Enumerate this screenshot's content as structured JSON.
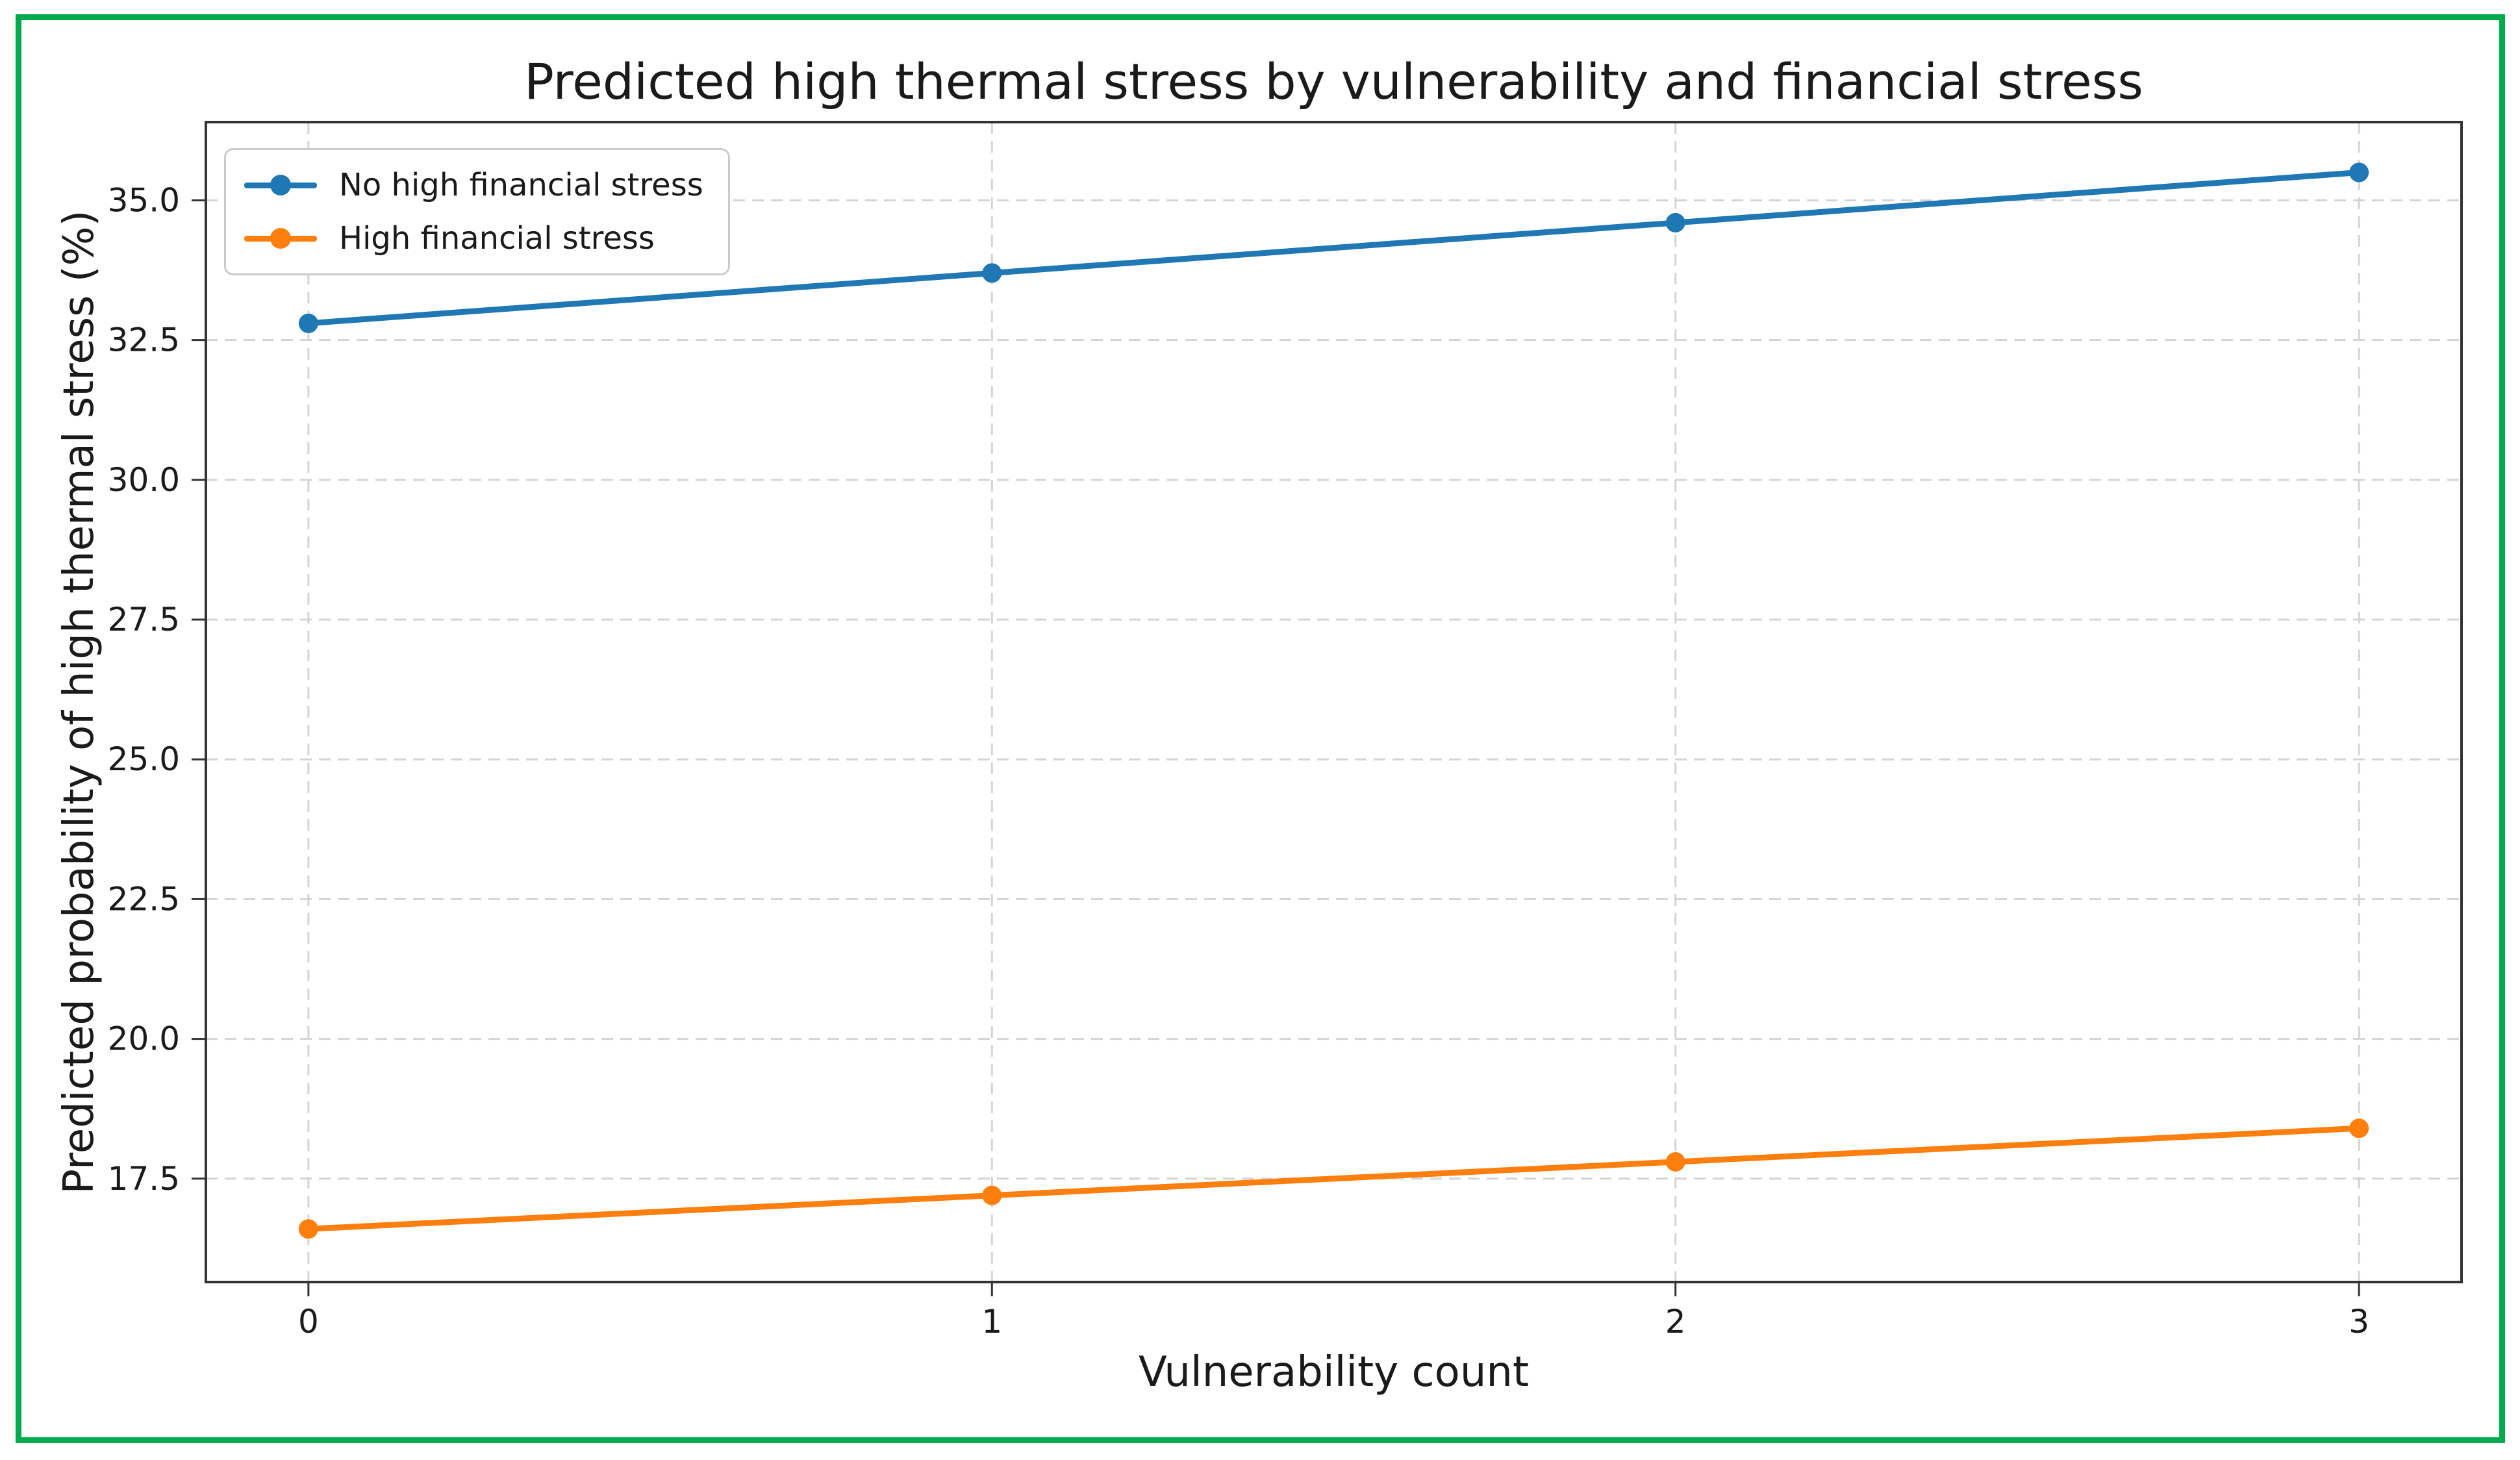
{
  "figure": {
    "border_color": "#00AB4E",
    "background": "#ffffff"
  },
  "chart_data": {
    "type": "line",
    "title": "Predicted high thermal stress by vulnerability and financial stress",
    "xlabel": "Vulnerability count",
    "ylabel": "Predicted probability of high thermal stress (%)",
    "x": [
      0,
      1,
      2,
      3
    ],
    "series": [
      {
        "name": "No high financial stress",
        "color": "#1f77b4",
        "values": [
          32.8,
          33.7,
          34.6,
          35.5
        ]
      },
      {
        "name": "High financial stress",
        "color": "#ff7f0e",
        "values": [
          16.6,
          17.2,
          17.8,
          18.4
        ]
      }
    ],
    "xlim": [
      -0.15,
      3.15
    ],
    "ylim": [
      15.65,
      36.4
    ],
    "x_ticks": [
      0,
      1,
      2,
      3
    ],
    "x_tick_labels": [
      "0",
      "1",
      "2",
      "3"
    ],
    "y_ticks": [
      17.5,
      20.0,
      22.5,
      25.0,
      27.5,
      30.0,
      32.5,
      35.0
    ],
    "y_tick_labels": [
      "17.5",
      "20.0",
      "22.5",
      "25.0",
      "27.5",
      "30.0",
      "32.5",
      "35.0"
    ],
    "grid": "dashed",
    "grid_color": "#d4d4d4",
    "axis_color": "#333333",
    "tick_label_color": "#1a1a1a",
    "legend_position": "upper-left"
  }
}
